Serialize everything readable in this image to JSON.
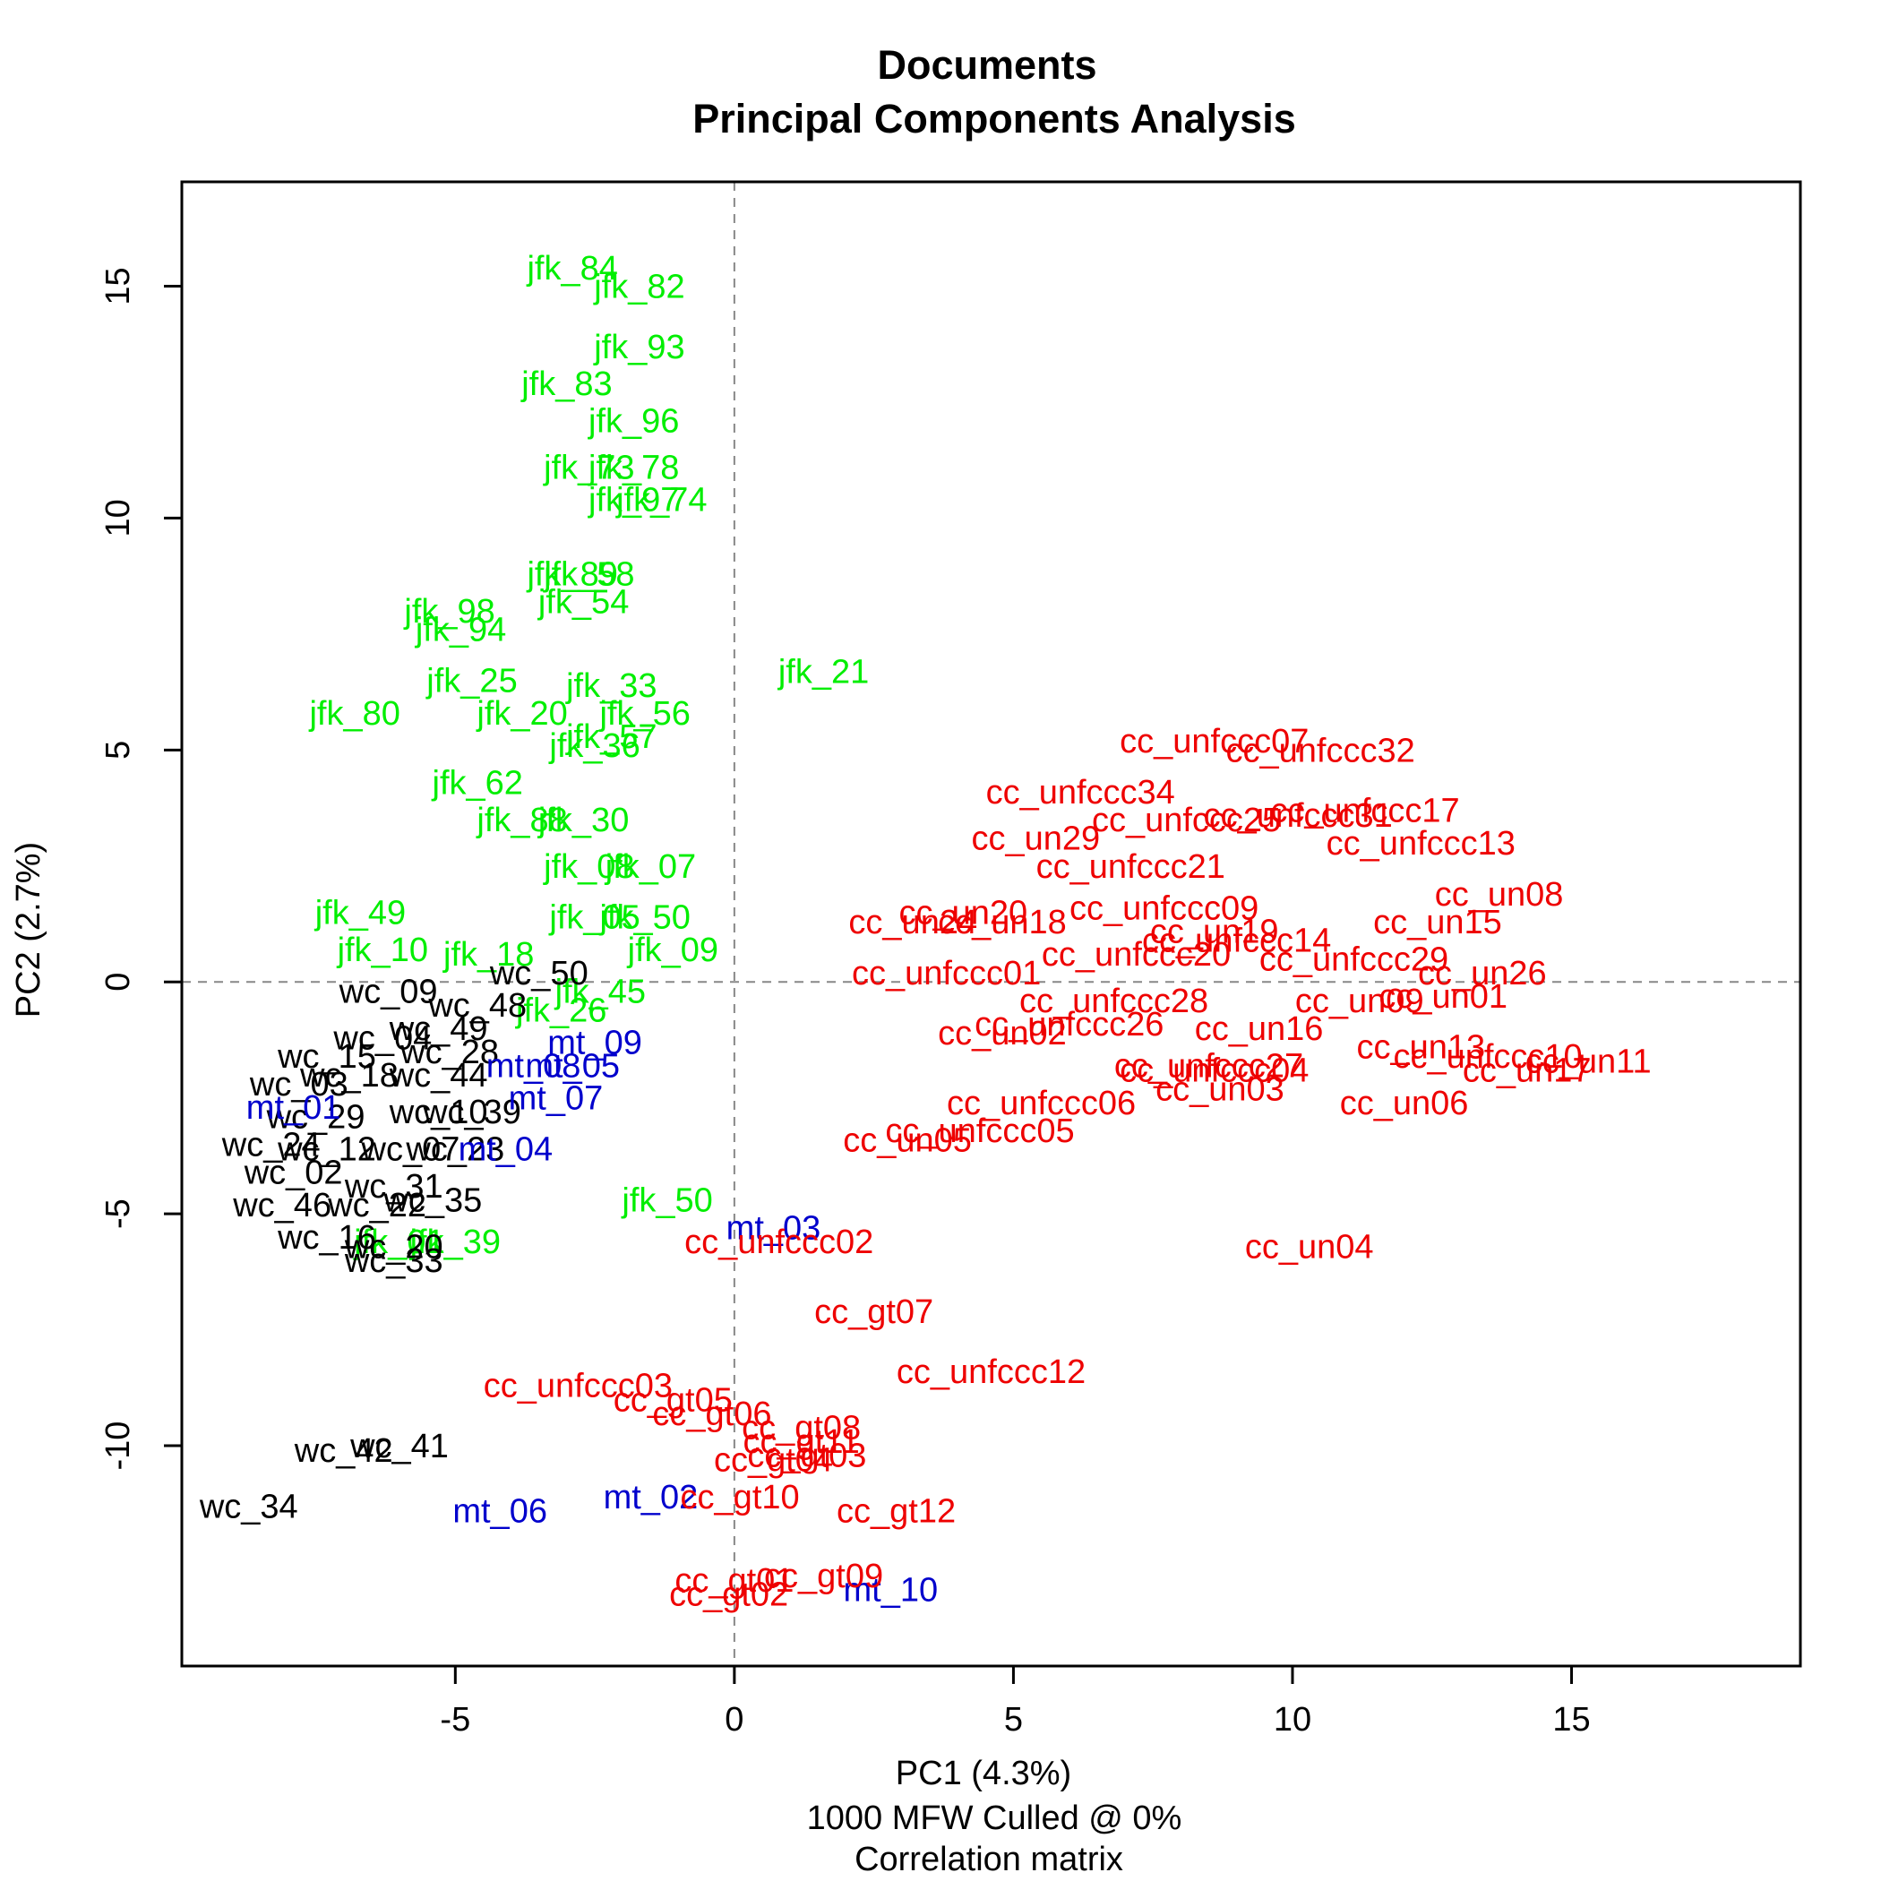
{
  "chart_data": {
    "type": "scatter",
    "title": "Documents",
    "subtitle": "Principal Components Analysis",
    "xlabel": "PC1 (4.3%)",
    "xlabel_extra": [
      "1000 MFW  Culled @ 0%",
      "Correlation matrix"
    ],
    "ylabel": "PC2 (2.7%)",
    "xlim": [
      -9.9,
      19.1
    ],
    "ylim": [
      -14.75,
      17.25
    ],
    "xticks": [
      -5,
      0,
      5,
      10,
      15
    ],
    "yticks": [
      -10,
      -5,
      0,
      5,
      10,
      15
    ],
    "grid": false,
    "reference_lines": {
      "x": 0,
      "y": 0
    },
    "series": [
      {
        "color": "#00ee00",
        "points": [
          {
            "label": "jfk_84",
            "x": -2.9,
            "y": 15.4
          },
          {
            "label": "jfk_82",
            "x": -1.7,
            "y": 15.0
          },
          {
            "label": "jfk_93",
            "x": -1.7,
            "y": 13.7
          },
          {
            "label": "jfk_83",
            "x": -3.0,
            "y": 12.9
          },
          {
            "label": "jfk_96",
            "x": -1.8,
            "y": 12.1
          },
          {
            "label": "jfk_78",
            "x": -1.8,
            "y": 11.1
          },
          {
            "label": "jfk_73",
            "x": -2.6,
            "y": 11.1
          },
          {
            "label": "jfk_74",
            "x": -1.3,
            "y": 10.4
          },
          {
            "label": "jfk_97",
            "x": -1.8,
            "y": 10.4
          },
          {
            "label": "jfk_89",
            "x": -2.9,
            "y": 8.8
          },
          {
            "label": "jfk_58",
            "x": -2.6,
            "y": 8.8
          },
          {
            "label": "jfk_54",
            "x": -2.7,
            "y": 8.2
          },
          {
            "label": "jfk_98",
            "x": -5.1,
            "y": 8.0
          },
          {
            "label": "jfk_94",
            "x": -4.9,
            "y": 7.6
          },
          {
            "label": "jfk_21",
            "x": 1.6,
            "y": 6.7
          },
          {
            "label": "jfk_25",
            "x": -4.7,
            "y": 6.5
          },
          {
            "label": "jfk_33",
            "x": -2.2,
            "y": 6.4
          },
          {
            "label": "jfk_56",
            "x": -1.6,
            "y": 5.8
          },
          {
            "label": "jfk_80",
            "x": -6.8,
            "y": 5.8
          },
          {
            "label": "jfk_57",
            "x": -2.2,
            "y": 5.3
          },
          {
            "label": "jfk_20",
            "x": -3.8,
            "y": 5.8
          },
          {
            "label": "jfk_36",
            "x": -2.5,
            "y": 5.1
          },
          {
            "label": "jfk_62",
            "x": -4.6,
            "y": 4.3
          },
          {
            "label": "jfk_30",
            "x": -2.7,
            "y": 3.5
          },
          {
            "label": "jfk_88",
            "x": -3.8,
            "y": 3.5
          },
          {
            "label": "jfk_07",
            "x": -1.5,
            "y": 2.5
          },
          {
            "label": "jfk_08",
            "x": -2.6,
            "y": 2.5
          },
          {
            "label": "jfk_50",
            "x": -1.6,
            "y": 1.4
          },
          {
            "label": "jfk_05",
            "x": -2.5,
            "y": 1.4
          },
          {
            "label": "jfk_09",
            "x": -1.1,
            "y": 0.7
          },
          {
            "label": "jfk_45",
            "x": -2.4,
            "y": -0.2
          },
          {
            "label": "jfk_26",
            "x": -3.1,
            "y": -0.6
          },
          {
            "label": "jfk_10",
            "x": -6.3,
            "y": 0.7
          },
          {
            "label": "jfk_18",
            "x": -4.4,
            "y": 0.6
          },
          {
            "label": "jfk_49",
            "x": -6.7,
            "y": 1.5
          },
          {
            "label": "jfk_01",
            "x": -6.0,
            "y": -5.6
          },
          {
            "label": "jfk_39",
            "x": -5.0,
            "y": -5.6
          },
          {
            "label": "jfk_50",
            "x": -1.2,
            "y": -4.7
          }
        ]
      },
      {
        "color": "#000000",
        "points": [
          {
            "label": "wc_50",
            "x": -3.5,
            "y": 0.2
          },
          {
            "label": "wc_09",
            "x": -6.2,
            "y": -0.2
          },
          {
            "label": "wc_48",
            "x": -4.6,
            "y": -0.5
          },
          {
            "label": "wc_49",
            "x": -5.3,
            "y": -1.0
          },
          {
            "label": "wc_04",
            "x": -6.3,
            "y": -1.2
          },
          {
            "label": "wc_28",
            "x": -5.1,
            "y": -1.5
          },
          {
            "label": "wc_15",
            "x": -7.3,
            "y": -1.6
          },
          {
            "label": "wc_18",
            "x": -6.9,
            "y": -2.0
          },
          {
            "label": "wc_44",
            "x": -5.3,
            "y": -2.0
          },
          {
            "label": "wc_03",
            "x": -7.8,
            "y": -2.2
          },
          {
            "label": "wc_10",
            "x": -5.3,
            "y": -2.8
          },
          {
            "label": "wc_39",
            "x": -4.7,
            "y": -2.8
          },
          {
            "label": "wc_29",
            "x": -7.5,
            "y": -2.9
          },
          {
            "label": "wc_07",
            "x": -5.8,
            "y": -3.6
          },
          {
            "label": "wc_23",
            "x": -5.0,
            "y": -3.6
          },
          {
            "label": "wc_24",
            "x": -8.3,
            "y": -3.5
          },
          {
            "label": "wc_12",
            "x": -7.3,
            "y": -3.6
          },
          {
            "label": "wc_02",
            "x": -7.9,
            "y": -4.1
          },
          {
            "label": "wc_31",
            "x": -6.1,
            "y": -4.4
          },
          {
            "label": "wc_35",
            "x": -5.4,
            "y": -4.7
          },
          {
            "label": "wc_22",
            "x": -6.4,
            "y": -4.8
          },
          {
            "label": "wc_46",
            "x": -8.1,
            "y": -4.8
          },
          {
            "label": "wc_16",
            "x": -7.3,
            "y": -5.5
          },
          {
            "label": "wc_20",
            "x": -6.1,
            "y": -5.7
          },
          {
            "label": "wc_33",
            "x": -6.1,
            "y": -6.0
          },
          {
            "label": "wc_41",
            "x": -6.0,
            "y": -10.0
          },
          {
            "label": "wc_42",
            "x": -7.0,
            "y": -10.1
          },
          {
            "label": "wc_34",
            "x": -8.7,
            "y": -11.3
          }
        ]
      },
      {
        "color": "#0000cc",
        "points": [
          {
            "label": "mt_09",
            "x": -2.5,
            "y": -1.3
          },
          {
            "label": "mt_08",
            "x": -3.6,
            "y": -1.8
          },
          {
            "label": "mt_05",
            "x": -2.9,
            "y": -1.8
          },
          {
            "label": "mt_07",
            "x": -3.2,
            "y": -2.5
          },
          {
            "label": "mt_01",
            "x": -7.9,
            "y": -2.7
          },
          {
            "label": "mt_04",
            "x": -4.1,
            "y": -3.6
          },
          {
            "label": "mt_03",
            "x": 0.7,
            "y": -5.3
          },
          {
            "label": "mt_02",
            "x": -1.5,
            "y": -11.1
          },
          {
            "label": "mt_06",
            "x": -4.2,
            "y": -11.4
          },
          {
            "label": "mt_10",
            "x": 2.8,
            "y": -13.1
          }
        ]
      },
      {
        "color": "#ee0000",
        "points": [
          {
            "label": "cc_unfccc07",
            "x": 8.6,
            "y": 5.2
          },
          {
            "label": "cc_unfccc32",
            "x": 10.5,
            "y": 5.0
          },
          {
            "label": "cc_unfccc34",
            "x": 6.2,
            "y": 4.1
          },
          {
            "label": "cc_unfccc17",
            "x": 11.3,
            "y": 3.7
          },
          {
            "label": "cc_unfccc31",
            "x": 10.1,
            "y": 3.6
          },
          {
            "label": "cc_unfccc25",
            "x": 8.1,
            "y": 3.5
          },
          {
            "label": "cc_unfccc13",
            "x": 12.3,
            "y": 3.0
          },
          {
            "label": "cc_un29",
            "x": 5.4,
            "y": 3.1
          },
          {
            "label": "cc_unfccc21",
            "x": 7.1,
            "y": 2.5
          },
          {
            "label": "cc_un08",
            "x": 13.7,
            "y": 1.9
          },
          {
            "label": "cc_unfccc09",
            "x": 7.7,
            "y": 1.6
          },
          {
            "label": "cc_un20",
            "x": 4.1,
            "y": 1.5
          },
          {
            "label": "cc_un24",
            "x": 3.2,
            "y": 1.3
          },
          {
            "label": "cc_un18",
            "x": 4.8,
            "y": 1.3
          },
          {
            "label": "cc_un15",
            "x": 12.6,
            "y": 1.3
          },
          {
            "label": "cc_un19",
            "x": 8.6,
            "y": 1.1
          },
          {
            "label": "cc_unfccc14",
            "x": 9.0,
            "y": 0.9
          },
          {
            "label": "cc_unfccc29",
            "x": 11.1,
            "y": 0.5
          },
          {
            "label": "cc_unfccc20",
            "x": 7.2,
            "y": 0.6
          },
          {
            "label": "cc_unfccc01",
            "x": 3.8,
            "y": 0.2
          },
          {
            "label": "cc_un26",
            "x": 13.4,
            "y": 0.2
          },
          {
            "label": "cc_un01",
            "x": 12.7,
            "y": -0.3
          },
          {
            "label": "cc_un09",
            "x": 11.2,
            "y": -0.4
          },
          {
            "label": "cc_unfccc28",
            "x": 6.8,
            "y": -0.4
          },
          {
            "label": "cc_unfccc26",
            "x": 6.0,
            "y": -0.9
          },
          {
            "label": "cc_un16",
            "x": 9.4,
            "y": -1.0
          },
          {
            "label": "cc_un02",
            "x": 4.8,
            "y": -1.1
          },
          {
            "label": "cc_un13",
            "x": 12.3,
            "y": -1.4
          },
          {
            "label": "cc_unfccc10",
            "x": 13.5,
            "y": -1.6
          },
          {
            "label": "cc_un11",
            "x": 15.3,
            "y": -1.7
          },
          {
            "label": "cc_un17",
            "x": 14.2,
            "y": -1.9
          },
          {
            "label": "cc_unfccc27",
            "x": 8.5,
            "y": -1.8
          },
          {
            "label": "cc_unfccc04",
            "x": 8.6,
            "y": -1.9
          },
          {
            "label": "cc_un03",
            "x": 8.7,
            "y": -2.3
          },
          {
            "label": "cc_un06",
            "x": 12.0,
            "y": -2.6
          },
          {
            "label": "cc_unfccc06",
            "x": 5.5,
            "y": -2.6
          },
          {
            "label": "cc_unfccc05",
            "x": 4.4,
            "y": -3.2
          },
          {
            "label": "cc_un05",
            "x": 3.1,
            "y": -3.4
          },
          {
            "label": "cc_unfccc02",
            "x": 0.8,
            "y": -5.6
          },
          {
            "label": "cc_un04",
            "x": 10.3,
            "y": -5.7
          },
          {
            "label": "cc_gt07",
            "x": 2.5,
            "y": -7.1
          },
          {
            "label": "cc_unfccc12",
            "x": 4.6,
            "y": -8.4
          },
          {
            "label": "cc_unfccc03",
            "x": -2.8,
            "y": -8.7
          },
          {
            "label": "cc_gt05",
            "x": -1.1,
            "y": -9.0
          },
          {
            "label": "cc_gt06",
            "x": -0.4,
            "y": -9.3
          },
          {
            "label": "cc_gt08",
            "x": 1.2,
            "y": -9.6
          },
          {
            "label": "cc_gt11",
            "x": 1.2,
            "y": -9.9
          },
          {
            "label": "cc_gt03",
            "x": 1.3,
            "y": -10.2
          },
          {
            "label": "cc_gt04",
            "x": 0.7,
            "y": -10.3
          },
          {
            "label": "cc_gt10",
            "x": 0.1,
            "y": -11.1
          },
          {
            "label": "cc_gt12",
            "x": 2.9,
            "y": -11.4
          },
          {
            "label": "cc_gt09",
            "x": 1.6,
            "y": -12.8
          },
          {
            "label": "cc_gt01",
            "x": 0.0,
            "y": -12.9
          },
          {
            "label": "cc_gt02",
            "x": -0.1,
            "y": -13.2
          }
        ]
      }
    ]
  }
}
